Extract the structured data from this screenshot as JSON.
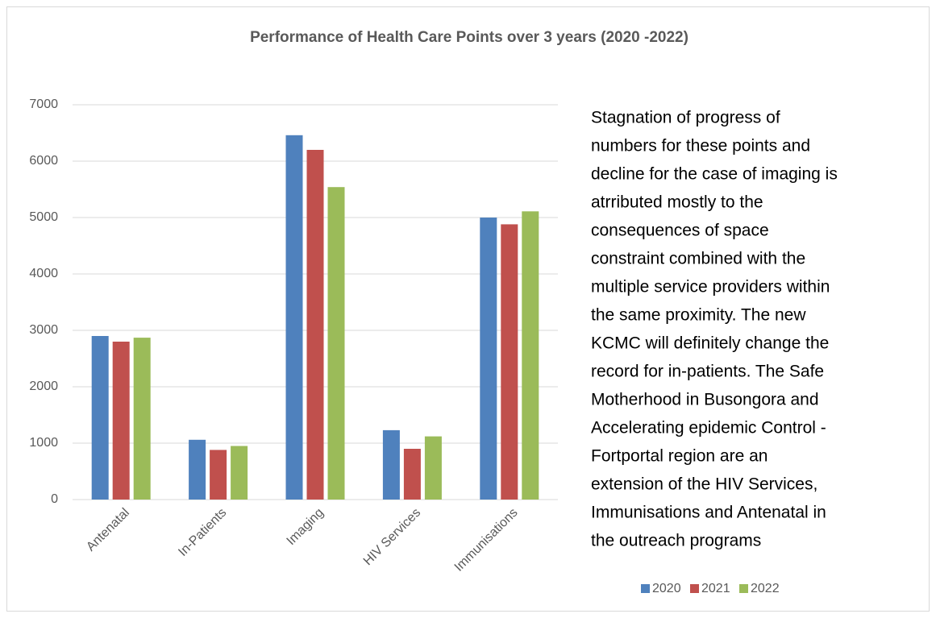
{
  "chart_data": {
    "type": "bar",
    "title": "Performance of Health Care Points over 3 years (2020 -2022)",
    "categories": [
      "Antenatal",
      "In-Patients",
      "Imaging",
      "HIV Services",
      "Immunisations"
    ],
    "series": [
      {
        "name": "2020",
        "color": "#4f81bd",
        "values": [
          2900,
          1060,
          6460,
          1230,
          5000
        ]
      },
      {
        "name": "2021",
        "color": "#c0504d",
        "values": [
          2800,
          880,
          6200,
          900,
          4880
        ]
      },
      {
        "name": "2022",
        "color": "#9bbb59",
        "values": [
          2870,
          950,
          5540,
          1120,
          5110
        ]
      }
    ],
    "ylim": [
      0,
      7000
    ],
    "yticks": [
      0,
      1000,
      2000,
      3000,
      4000,
      5000,
      6000,
      7000
    ],
    "grid": true,
    "legend": "bottom-right",
    "annotation": [
      "Stagnation of progress of",
      "numbers for these points and",
      "decline for the case of imaging  is",
      "atrributed mostly to  the",
      "consequences of space",
      "constraint  combined with the",
      "multiple service providers within",
      "the same proximity.  The new",
      "KCMC will definitely change the",
      "record for in-patients. The Safe",
      "Motherhood in Busongora and",
      "Accelerating epidemic Control -",
      "Fortportal region are an",
      "extension of the HIV Services,",
      "Immunisations and Antenatal in",
      "the outreach programs"
    ]
  }
}
